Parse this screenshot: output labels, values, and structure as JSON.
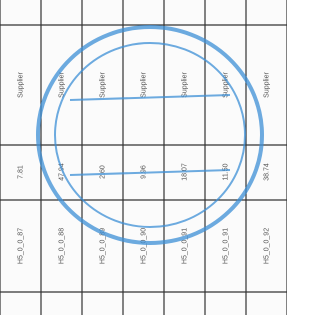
{
  "table": {
    "rows": [
      {
        "id": "H5_0_0_87",
        "value": "7.81",
        "supplier": "Supplier"
      },
      {
        "id": "H5_0_0_88",
        "value": "47.94",
        "supplier": "Supplier"
      },
      {
        "id": "H5_0_0_89",
        "value": "2.60",
        "supplier": "Supplier"
      },
      {
        "id": "H5_0_0_90",
        "value": "9.96",
        "supplier": "Supplier"
      },
      {
        "id": "H5_0_0_91",
        "value": "18.07",
        "supplier": "Supplier"
      },
      {
        "id": "H5_0_0_91",
        "value": "11.50",
        "supplier": "Supplier"
      },
      {
        "id": "H5_0_0_92",
        "value": "38.74",
        "supplier": "Supplier"
      }
    ]
  }
}
